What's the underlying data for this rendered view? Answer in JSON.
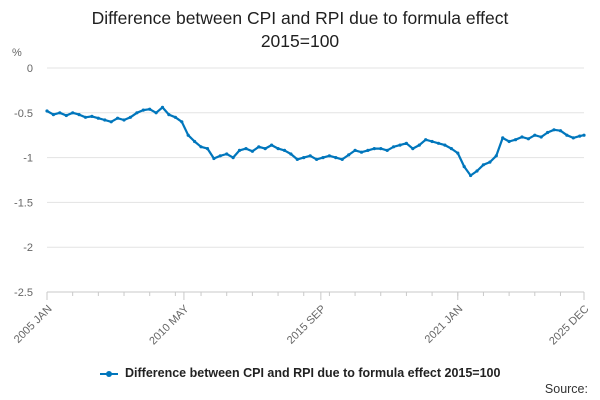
{
  "chart_data": {
    "type": "line",
    "title_lines": [
      "Difference between CPI and RPI due to formula effect",
      "2015=100"
    ],
    "ylabel": "%",
    "ylim": [
      -2.5,
      0
    ],
    "yticks": [
      0,
      -0.5,
      -1,
      -1.5,
      -2,
      -2.5
    ],
    "ytick_labels": [
      "0",
      "-0.5",
      "-1",
      "-1.5",
      "-2",
      "-2.5"
    ],
    "xlim": [
      "2005-01",
      "2025-12"
    ],
    "xticks": [
      "2005-01",
      "2010-05",
      "2015-09",
      "2021-01",
      "2025-12"
    ],
    "xtick_labels": [
      "2005 JAN",
      "2010 MAY",
      "2015 SEP",
      "2021 JAN",
      "2025 DEC"
    ],
    "grid": true,
    "legend_position": "bottom",
    "color": "#0076bc",
    "series": [
      {
        "name": "Difference between CPI and RPI due to formula effect 2015=100",
        "points": [
          [
            "2005-01",
            -0.48
          ],
          [
            "2005-04",
            -0.52
          ],
          [
            "2005-07",
            -0.5
          ],
          [
            "2005-10",
            -0.53
          ],
          [
            "2006-01",
            -0.5
          ],
          [
            "2006-04",
            -0.52
          ],
          [
            "2006-07",
            -0.55
          ],
          [
            "2006-10",
            -0.54
          ],
          [
            "2007-01",
            -0.56
          ],
          [
            "2007-04",
            -0.58
          ],
          [
            "2007-07",
            -0.6
          ],
          [
            "2007-10",
            -0.56
          ],
          [
            "2008-01",
            -0.58
          ],
          [
            "2008-04",
            -0.55
          ],
          [
            "2008-07",
            -0.5
          ],
          [
            "2008-10",
            -0.47
          ],
          [
            "2009-01",
            -0.46
          ],
          [
            "2009-04",
            -0.5
          ],
          [
            "2009-07",
            -0.44
          ],
          [
            "2009-10",
            -0.52
          ],
          [
            "2010-01",
            -0.55
          ],
          [
            "2010-04",
            -0.6
          ],
          [
            "2010-07",
            -0.75
          ],
          [
            "2010-10",
            -0.82
          ],
          [
            "2011-01",
            -0.88
          ],
          [
            "2011-04",
            -0.9
          ],
          [
            "2011-07",
            -1.01
          ],
          [
            "2011-10",
            -0.98
          ],
          [
            "2012-01",
            -0.96
          ],
          [
            "2012-04",
            -1.0
          ],
          [
            "2012-07",
            -0.92
          ],
          [
            "2012-10",
            -0.9
          ],
          [
            "2013-01",
            -0.93
          ],
          [
            "2013-04",
            -0.88
          ],
          [
            "2013-07",
            -0.9
          ],
          [
            "2013-10",
            -0.86
          ],
          [
            "2014-01",
            -0.9
          ],
          [
            "2014-04",
            -0.92
          ],
          [
            "2014-07",
            -0.96
          ],
          [
            "2014-10",
            -1.02
          ],
          [
            "2015-01",
            -1.0
          ],
          [
            "2015-04",
            -0.98
          ],
          [
            "2015-07",
            -1.02
          ],
          [
            "2015-10",
            -1.0
          ],
          [
            "2016-01",
            -0.98
          ],
          [
            "2016-04",
            -1.0
          ],
          [
            "2016-07",
            -1.02
          ],
          [
            "2016-10",
            -0.97
          ],
          [
            "2017-01",
            -0.92
          ],
          [
            "2017-04",
            -0.94
          ],
          [
            "2017-07",
            -0.92
          ],
          [
            "2017-10",
            -0.9
          ],
          [
            "2018-01",
            -0.9
          ],
          [
            "2018-04",
            -0.92
          ],
          [
            "2018-07",
            -0.88
          ],
          [
            "2018-10",
            -0.86
          ],
          [
            "2019-01",
            -0.84
          ],
          [
            "2019-04",
            -0.9
          ],
          [
            "2019-07",
            -0.86
          ],
          [
            "2019-10",
            -0.8
          ],
          [
            "2020-01",
            -0.82
          ],
          [
            "2020-04",
            -0.84
          ],
          [
            "2020-07",
            -0.86
          ],
          [
            "2020-10",
            -0.9
          ],
          [
            "2021-01",
            -0.95
          ],
          [
            "2021-04",
            -1.1
          ],
          [
            "2021-07",
            -1.2
          ],
          [
            "2021-10",
            -1.15
          ],
          [
            "2022-01",
            -1.08
          ],
          [
            "2022-04",
            -1.05
          ],
          [
            "2022-07",
            -0.98
          ],
          [
            "2022-10",
            -0.78
          ],
          [
            "2023-01",
            -0.82
          ],
          [
            "2023-04",
            -0.8
          ],
          [
            "2023-07",
            -0.77
          ],
          [
            "2023-10",
            -0.79
          ],
          [
            "2024-01",
            -0.75
          ],
          [
            "2024-04",
            -0.77
          ],
          [
            "2024-07",
            -0.72
          ],
          [
            "2024-10",
            -0.69
          ],
          [
            "2025-01",
            -0.7
          ],
          [
            "2025-04",
            -0.75
          ],
          [
            "2025-07",
            -0.78
          ],
          [
            "2025-10",
            -0.76
          ],
          [
            "2025-12",
            -0.75
          ]
        ]
      }
    ]
  },
  "legend_label": "Difference between CPI and RPI due to formula effect 2015=100",
  "source_label": "Source:"
}
